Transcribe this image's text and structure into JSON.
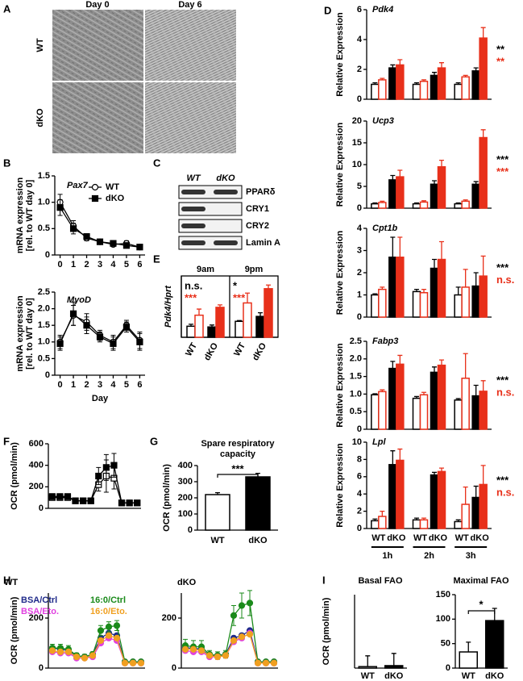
{
  "panel_labels": [
    "A",
    "B",
    "C",
    "D",
    "E",
    "F",
    "G",
    "H",
    "I"
  ],
  "images": {
    "columns": [
      "Day 0",
      "Day 6"
    ],
    "rows": [
      "WT",
      "dKO"
    ]
  },
  "blot": {
    "columns": [
      "WT",
      "dKO"
    ],
    "bands": [
      "PPARδ",
      "CRY1",
      "CRY2",
      "Lamin A"
    ]
  },
  "chart_data": [
    {
      "type": "line",
      "title": "Pax7",
      "ylabel": [
        "mRNA expression",
        "[rel. to WT day 0]"
      ],
      "x": [
        0,
        1,
        2,
        3,
        4,
        5,
        6
      ],
      "xlim": [
        -0.4,
        6.4
      ],
      "xticks": [
        0,
        1,
        2,
        3,
        4,
        5,
        6
      ],
      "ylim": [
        0,
        1.5
      ],
      "yticks": [
        0,
        0.5,
        {
          "value": 1,
          "label": "1.0"
        },
        1.5
      ],
      "series": [
        {
          "name": "WT",
          "color": "#000000",
          "filled": false,
          "marker": "circle",
          "values": [
            1.0,
            0.55,
            0.32,
            0.25,
            0.2,
            0.22,
            0.15
          ],
          "errors": [
            0.15,
            0.1,
            0.05,
            0.04,
            0.03,
            0.05,
            0.03
          ]
        },
        {
          "name": "dKO",
          "color": "#000000",
          "filled": true,
          "marker": "square",
          "values": [
            0.9,
            0.5,
            0.35,
            0.25,
            0.22,
            0.18,
            0.15
          ],
          "errors": [
            0.15,
            0.1,
            0.05,
            0.04,
            0.03,
            0.03,
            0.03
          ]
        }
      ]
    },
    {
      "type": "line",
      "title": "MyoD",
      "ylabel": [
        "mRNA expression",
        "[rel. to WT day 0]"
      ],
      "xlabel": "Day",
      "x": [
        0,
        1,
        2,
        3,
        4,
        5,
        6
      ],
      "xlim": [
        -0.4,
        6.4
      ],
      "xticks": [
        0,
        1,
        2,
        3,
        4,
        5,
        6
      ],
      "ylim": [
        0,
        2.5
      ],
      "yticks": [
        0,
        0.5,
        {
          "value": 1,
          "label": "1.0"
        },
        1.5,
        {
          "value": 2,
          "label": "2.0"
        },
        2.5
      ],
      "series": [
        {
          "color": "#000000",
          "filled": false,
          "marker": "circle",
          "values": [
            1.0,
            1.8,
            1.6,
            1.2,
            1.0,
            1.5,
            1.05
          ],
          "errors": [
            0.2,
            0.3,
            0.25,
            0.15,
            0.2,
            0.15,
            0.25
          ]
        },
        {
          "color": "#000000",
          "filled": true,
          "marker": "square",
          "values": [
            0.95,
            1.85,
            1.5,
            1.15,
            0.95,
            1.45,
            1.0
          ],
          "errors": [
            0.2,
            0.35,
            0.25,
            0.15,
            0.2,
            0.15,
            0.25
          ]
        }
      ]
    },
    {
      "type": "bar",
      "title": "Pdk4",
      "ylabel": "Relative Expression",
      "ylim": [
        0,
        6
      ],
      "yticks": [
        0,
        2,
        4,
        6
      ],
      "series": [
        {
          "color": "#000000",
          "filled": false,
          "values": [
            1.0,
            1.0,
            1.0
          ],
          "errors": [
            0.1,
            0.1,
            0.1
          ]
        },
        {
          "color": "#e8301a",
          "filled": false,
          "values": [
            1.3,
            1.2,
            1.5
          ],
          "errors": [
            0.1,
            0.1,
            0.1
          ]
        },
        {
          "color": "#000000",
          "filled": true,
          "values": [
            2.1,
            1.6,
            1.9
          ],
          "errors": [
            0.2,
            0.2,
            0.2
          ]
        },
        {
          "color": "#e8301a",
          "filled": true,
          "values": [
            2.3,
            2.1,
            4.1
          ],
          "errors": [
            0.35,
            0.35,
            0.7
          ]
        }
      ],
      "annotations": [
        {
          "text": "**",
          "color": "#000000"
        },
        {
          "text": "**",
          "color": "#e8301a"
        }
      ]
    },
    {
      "type": "bar",
      "title": "Ucp3",
      "ylabel": "Relative Expression",
      "ylim": [
        0,
        20
      ],
      "yticks": [
        0,
        5,
        10,
        15,
        20
      ],
      "series": [
        {
          "color": "#000000",
          "filled": false,
          "values": [
            1,
            1,
            1
          ],
          "errors": [
            0.2,
            0.2,
            0.2
          ]
        },
        {
          "color": "#e8301a",
          "filled": false,
          "values": [
            1.3,
            1.4,
            1.6
          ],
          "errors": [
            0.3,
            0.3,
            0.3
          ]
        },
        {
          "color": "#000000",
          "filled": true,
          "values": [
            6.5,
            5.5,
            5.5
          ],
          "errors": [
            1,
            0.8,
            0.6
          ]
        },
        {
          "color": "#e8301a",
          "filled": true,
          "values": [
            7.2,
            9.5,
            16.2
          ],
          "errors": [
            1.5,
            1.5,
            1.8
          ]
        }
      ],
      "annotations": [
        {
          "text": "***",
          "color": "#000000"
        },
        {
          "text": "***",
          "color": "#e8301a"
        }
      ]
    },
    {
      "type": "bar",
      "title": "Cpt1b",
      "ylabel": "Relative Expression",
      "ylim": [
        0,
        4
      ],
      "yticks": [
        0,
        1,
        2,
        3,
        4
      ],
      "series": [
        {
          "color": "#000000",
          "filled": false,
          "values": [
            1.0,
            1.15,
            1.0
          ],
          "errors": [
            0.05,
            0.1,
            0.35
          ]
        },
        {
          "color": "#e8301a",
          "filled": false,
          "values": [
            1.25,
            1.1,
            1.35
          ],
          "errors": [
            0.1,
            0.15,
            0.8
          ]
        },
        {
          "color": "#000000",
          "filled": true,
          "values": [
            2.7,
            2.2,
            1.4
          ],
          "errors": [
            0.9,
            0.4,
            0.6
          ]
        },
        {
          "color": "#e8301a",
          "filled": true,
          "values": [
            2.7,
            2.6,
            1.85
          ],
          "errors": [
            0.9,
            0.8,
            0.9
          ]
        }
      ],
      "annotations": [
        {
          "text": "***",
          "color": "#000000"
        },
        {
          "text": "n.s.",
          "color": "#e8301a"
        }
      ]
    },
    {
      "type": "bar",
      "title": "Fabp3",
      "ylabel": "Relative Expression",
      "ylim": [
        0,
        2.5
      ],
      "yticks": [
        0,
        0.5,
        {
          "value": 1,
          "label": "1.0"
        },
        1.5,
        {
          "value": 2,
          "label": "2.0"
        },
        2.5
      ],
      "series": [
        {
          "color": "#000000",
          "filled": false,
          "values": [
            0.98,
            0.88,
            0.83
          ],
          "errors": [
            0.03,
            0.05,
            0.04
          ]
        },
        {
          "color": "#e8301a",
          "filled": false,
          "values": [
            1.07,
            0.98,
            1.45
          ],
          "errors": [
            0.05,
            0.07,
            0.7
          ]
        },
        {
          "color": "#000000",
          "filled": true,
          "values": [
            1.73,
            1.62,
            0.95
          ],
          "errors": [
            0.2,
            0.15,
            0.3
          ]
        },
        {
          "color": "#e8301a",
          "filled": true,
          "values": [
            1.85,
            1.82,
            1.08
          ],
          "errors": [
            0.25,
            0.15,
            0.3
          ]
        }
      ],
      "annotations": [
        {
          "text": "***",
          "color": "#000000"
        },
        {
          "text": "n.s.",
          "color": "#e8301a"
        }
      ]
    },
    {
      "type": "bar",
      "title": "Lpl",
      "ylabel": "Relative Expression",
      "ylim": [
        0,
        10
      ],
      "yticks": [
        0,
        2,
        4,
        6,
        8,
        10
      ],
      "categories": [
        "1h",
        "2h",
        "3h"
      ],
      "subcategories": [
        "WT",
        "dKO"
      ],
      "series": [
        {
          "color": "#000000",
          "filled": false,
          "values": [
            0.9,
            1.0,
            0.8
          ],
          "errors": [
            0.2,
            0.2,
            0.2
          ]
        },
        {
          "color": "#e8301a",
          "filled": false,
          "values": [
            1.4,
            1.0,
            2.8
          ],
          "errors": [
            0.6,
            0.2,
            2.0
          ]
        },
        {
          "color": "#000000",
          "filled": true,
          "values": [
            7.4,
            6.2,
            3.6
          ],
          "errors": [
            1.6,
            0.3,
            1.3
          ]
        },
        {
          "color": "#e8301a",
          "filled": true,
          "values": [
            7.9,
            6.6,
            5.1
          ],
          "errors": [
            1.3,
            0.4,
            2.2
          ]
        }
      ],
      "annotations": [
        {
          "text": "***",
          "color": "#000000"
        },
        {
          "text": "n.s.",
          "color": "#e8301a"
        }
      ]
    },
    {
      "type": "bar",
      "ylabel": "Pdk4/Hprt",
      "ylim": [
        0,
        2.5
      ],
      "frame": true,
      "categories": [
        "9am",
        "9pm"
      ],
      "subcategories": [
        "WT",
        "dKO"
      ],
      "series": [
        {
          "color": "#000000",
          "filled": false,
          "values": [
            0.45,
            0.65
          ],
          "errors": [
            0.08,
            0.03
          ]
        },
        {
          "color": "#e8301a",
          "filled": false,
          "values": [
            0.9,
            1.4
          ],
          "errors": [
            0.25,
            0.4
          ]
        },
        {
          "color": "#000000",
          "filled": true,
          "values": [
            0.42,
            0.85
          ],
          "errors": [
            0.08,
            0.15
          ]
        },
        {
          "color": "#e8301a",
          "filled": true,
          "values": [
            1.22,
            1.98
          ],
          "errors": [
            0.1,
            0.15
          ]
        }
      ],
      "annotations": [
        {
          "text": "n.s.",
          "color": "#000000"
        },
        {
          "text": "***",
          "color": "#e8301a"
        },
        {
          "text": "*",
          "color": "#000000"
        },
        {
          "text": "***",
          "color": "#e8301a"
        }
      ]
    },
    {
      "type": "line",
      "ylabel": "OCR (pmol/min)",
      "x": [
        1,
        2,
        3,
        4,
        5,
        6,
        7,
        8,
        9,
        10,
        11,
        12
      ],
      "xlim": [
        0.5,
        12.5
      ],
      "ylim": [
        0,
        600
      ],
      "yticks": [
        0,
        200,
        400,
        600
      ],
      "series": [
        {
          "color": "#000000",
          "filled": false,
          "marker": "square",
          "values": [
            100,
            100,
            100,
            70,
            70,
            70,
            220,
            300,
            280,
            50,
            50,
            50
          ],
          "errors": [
            10,
            10,
            10,
            10,
            10,
            10,
            60,
            150,
            100,
            5,
            5,
            5
          ]
        },
        {
          "color": "#000000",
          "filled": true,
          "marker": "square",
          "values": [
            110,
            110,
            110,
            70,
            70,
            70,
            300,
            380,
            400,
            50,
            50,
            50
          ],
          "errors": [
            10,
            10,
            10,
            10,
            10,
            10,
            80,
            120,
            110,
            5,
            5,
            5
          ]
        }
      ]
    },
    {
      "type": "bar",
      "title": [
        "Spare respiratory",
        "capacity"
      ],
      "ylabel": "OCR (pmol/min)",
      "categories": [
        "WT",
        "dKO"
      ],
      "values": [
        220,
        330
      ],
      "errors": [
        12,
        22
      ],
      "filled": [
        false,
        true
      ],
      "color": "#000000",
      "ylim": [
        0,
        400
      ],
      "yticks": [
        0,
        100,
        200,
        300,
        400
      ],
      "bracket": true,
      "annotations": [
        {
          "text": "***",
          "color": "#000000"
        }
      ]
    },
    {
      "type": "line",
      "title": "WT",
      "ylabel": "OCR (pmol/min)",
      "x": [
        1,
        2,
        3,
        4,
        5,
        6,
        7,
        8,
        9,
        10,
        11,
        12
      ],
      "xlim": [
        0.5,
        12.5
      ],
      "ylim": [
        0,
        300
      ],
      "yticks": [
        0,
        200
      ],
      "series": [
        {
          "name": "BSA/Ctrl",
          "color": "#1f2a8a",
          "filled": true,
          "marker": "circle",
          "values": [
            80,
            75,
            70,
            50,
            45,
            55,
            120,
            140,
            130,
            25,
            25,
            25
          ]
        },
        {
          "name": "16:0/Ctrl",
          "color": "#1a8a1a",
          "filled": true,
          "marker": "circle",
          "values": [
            80,
            80,
            75,
            50,
            45,
            55,
            150,
            165,
            170,
            25,
            25,
            25
          ],
          "errors": [
            15,
            15,
            15,
            10,
            10,
            10,
            20,
            20,
            20,
            5,
            5,
            5
          ]
        },
        {
          "name": "BSA/Eto.",
          "color": "#e040e0",
          "filled": true,
          "marker": "circle",
          "values": [
            65,
            60,
            60,
            40,
            40,
            45,
            100,
            120,
            110,
            20,
            20,
            20
          ]
        },
        {
          "name": "16:0/Eto.",
          "color": "#f0a020",
          "filled": true,
          "marker": "circle",
          "values": [
            70,
            65,
            65,
            45,
            40,
            50,
            110,
            130,
            120,
            20,
            20,
            20
          ]
        }
      ]
    },
    {
      "type": "line",
      "title": "dKO",
      "x": [
        1,
        2,
        3,
        4,
        5,
        6,
        7,
        8,
        9,
        10,
        11,
        12
      ],
      "xlim": [
        0.5,
        12.5
      ],
      "ylim": [
        0,
        300
      ],
      "yticks": [
        0,
        200
      ],
      "series": [
        {
          "color": "#1f2a8a",
          "filled": true,
          "marker": "circle",
          "values": [
            80,
            80,
            75,
            50,
            50,
            55,
            120,
            130,
            150,
            25,
            25,
            25
          ]
        },
        {
          "color": "#1a8a1a",
          "filled": true,
          "marker": "circle",
          "values": [
            90,
            85,
            85,
            55,
            50,
            55,
            210,
            250,
            260,
            25,
            25,
            25
          ],
          "errors": [
            25,
            25,
            25,
            15,
            15,
            15,
            40,
            50,
            50,
            5,
            5,
            5
          ]
        },
        {
          "color": "#e040e0",
          "filled": true,
          "marker": "circle",
          "values": [
            70,
            65,
            65,
            45,
            45,
            50,
            105,
            120,
            140,
            20,
            20,
            20
          ]
        },
        {
          "color": "#f0a020",
          "filled": true,
          "marker": "circle",
          "values": [
            75,
            75,
            70,
            50,
            45,
            50,
            110,
            125,
            135,
            20,
            20,
            20
          ]
        }
      ]
    },
    {
      "type": "bar",
      "title": "Basal FAO",
      "ylabel": "OCR (pmol/min)",
      "categories": [
        "WT",
        "dKO"
      ],
      "values": [
        3,
        5
      ],
      "errors": [
        22,
        25
      ],
      "filled": [
        false,
        true
      ],
      "color": "#000000",
      "ylim": [
        0,
        150
      ]
    },
    {
      "type": "bar",
      "title": "Maximal FAO",
      "categories": [
        "WT",
        "dKO"
      ],
      "values": [
        33,
        97
      ],
      "errors": [
        20,
        25
      ],
      "filled": [
        false,
        true
      ],
      "color": "#000000",
      "ylim": [
        0,
        150
      ],
      "yticks": [
        0,
        50,
        100,
        150
      ],
      "bracket": true,
      "annotations": [
        {
          "text": "*",
          "color": "#000000"
        }
      ]
    }
  ]
}
